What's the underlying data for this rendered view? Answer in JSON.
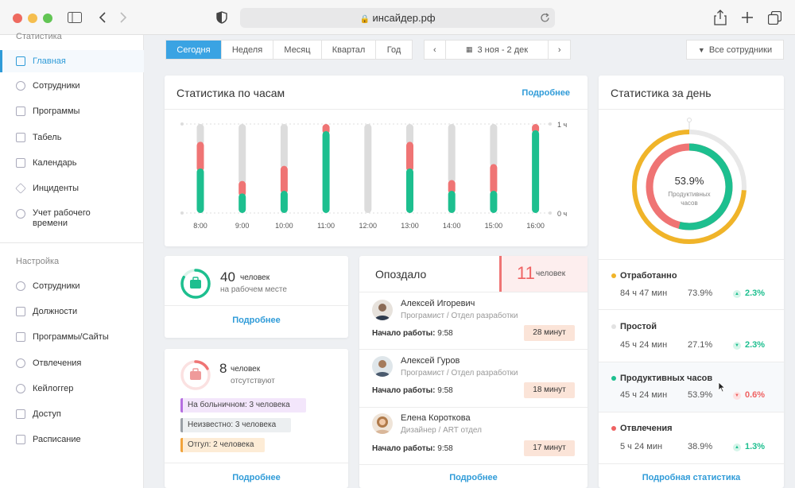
{
  "browser": {
    "url": "инсайдер.рф",
    "window_controls": {
      "close": "#ee6a5f",
      "minimize": "#f5be4f",
      "maximize": "#62c554"
    }
  },
  "sidebar": {
    "section_stats": "Статистика",
    "stats_items": [
      {
        "label": "Главная",
        "icon": "grid-icon",
        "active": true
      },
      {
        "label": "Сотрудники",
        "icon": "user-icon"
      },
      {
        "label": "Программы",
        "icon": "layers-icon"
      },
      {
        "label": "Табель",
        "icon": "table-icon"
      },
      {
        "label": "Календарь",
        "icon": "calendar-icon"
      },
      {
        "label": "Инциденты",
        "icon": "warning-icon"
      },
      {
        "label": "Учет рабочего времени",
        "icon": "stopwatch-icon"
      }
    ],
    "section_settings": "Настройка",
    "settings_items": [
      {
        "label": "Сотрудники",
        "icon": "user-icon"
      },
      {
        "label": "Должности",
        "icon": "id-card-icon"
      },
      {
        "label": "Программы/Сайты",
        "icon": "layers-icon"
      },
      {
        "label": "Отвлечения",
        "icon": "clock-icon"
      },
      {
        "label": "Кейлоггер",
        "icon": "keyboard-icon"
      },
      {
        "label": "Доступ",
        "icon": "lock-icon"
      },
      {
        "label": "Расписание",
        "icon": "schedule-icon"
      }
    ]
  },
  "toolbar": {
    "periods": [
      "Сегодня",
      "Неделя",
      "Месяц",
      "Квартал",
      "Год"
    ],
    "selected_period": "Сегодня",
    "date_range": "3 ноя - 2 дек",
    "employees_filter": "Все сотрудники"
  },
  "hourly": {
    "title": "Статистика по часам",
    "more": "Подробнее",
    "y_top": "1 ч",
    "y_bottom": "0 ч"
  },
  "chart_data": {
    "type": "bar",
    "stacked": true,
    "categories": [
      "8:00",
      "9:00",
      "10:00",
      "11:00",
      "12:00",
      "13:00",
      "14:00",
      "15:00",
      "16:00"
    ],
    "ylim": [
      0,
      1
    ],
    "series": [
      {
        "values": [
          0.5,
          0.22,
          0.25,
          0.92,
          0,
          0.5,
          0.25,
          0.25,
          0.93
        ],
        "color": "#1dbf8f"
      },
      {
        "values": [
          0.3,
          0.14,
          0.28,
          0.08,
          0,
          0.3,
          0.12,
          0.3,
          0.07
        ],
        "color": "#ef7474"
      },
      {
        "values": [
          0.2,
          0.64,
          0.47,
          0,
          1,
          0.2,
          0.63,
          0.45,
          0
        ],
        "color": "#dcdcdc"
      }
    ]
  },
  "at_work": {
    "count": "40",
    "unit": "человек",
    "desc": "на рабочем месте",
    "more": "Подробнее",
    "ratio": 0.83
  },
  "absent": {
    "count": "8",
    "unit": "человек",
    "desc": "отсутствуют",
    "more": "Подробнее",
    "ratio": 0.17,
    "reasons": [
      {
        "label": "На больничном: 3 человека",
        "color": "#b56ee0",
        "bg": "#f3e6fb"
      },
      {
        "label": "Неизвестно: 3 человека",
        "color": "#9aa0a6",
        "bg": "#eceff1"
      },
      {
        "label": "Отгул: 2 человека",
        "color": "#f1a33b",
        "bg": "#fdecd6"
      }
    ]
  },
  "late": {
    "title": "Опоздало",
    "count": "11",
    "unit": "человек",
    "start_label": "Начало работы:",
    "more": "Подробнее",
    "employees": [
      {
        "name": "Алексей Игоревич",
        "role": "Програмист / Отдел разработки",
        "start": "9:58",
        "late": "28 минут"
      },
      {
        "name": "Алексей Гуров",
        "role": "Програмист / Отдел разработки",
        "start": "9:58",
        "late": "18 минут"
      },
      {
        "name": "Елена Короткова",
        "role": "Дизайнер / ART отдел",
        "start": "9:58",
        "late": "17 минут"
      }
    ]
  },
  "daily": {
    "title": "Статистика за день",
    "percent": "53.9%",
    "label": "Продуктивных часов",
    "productive_ratio": 0.539,
    "outer_ratio": 0.74,
    "more": "Подробная статистика",
    "rows": [
      {
        "name": "Отработанно",
        "dot": "#f0b429",
        "time": "84 ч 47 мин",
        "pct": "73.9%",
        "delta": "2.3%",
        "dir": "up"
      },
      {
        "name": "Простой",
        "dot": "#e2e2e2",
        "time": "45 ч 24 мин",
        "pct": "27.1%",
        "delta": "2.3%",
        "dir": "down-good"
      },
      {
        "name": "Продуктивных часов",
        "dot": "#1dbf8f",
        "time": "45 ч 24 мин",
        "pct": "53.9%",
        "delta": "0.6%",
        "dir": "down"
      },
      {
        "name": "Отвлечения",
        "dot": "#ef6262",
        "time": "5 ч 24 мин",
        "pct": "38.9%",
        "delta": "1.3%",
        "dir": "up"
      }
    ]
  }
}
